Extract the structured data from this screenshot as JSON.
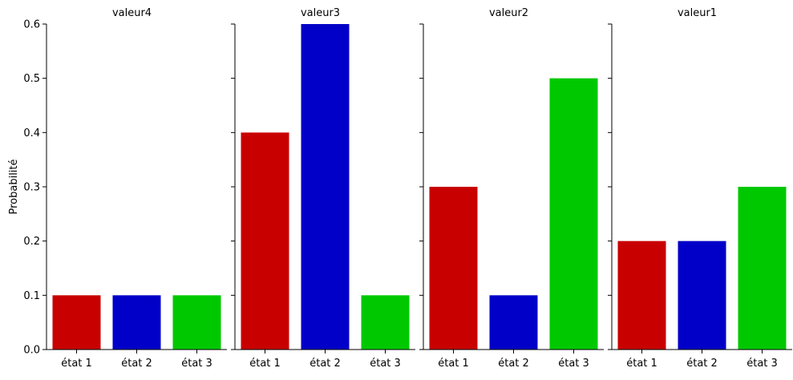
{
  "chart_data": {
    "type": "bar",
    "layout": "facet-grid",
    "ylabel": "Probabilité",
    "ylim": [
      0,
      0.6
    ],
    "yticks": [
      "0.0",
      "0.1",
      "0.2",
      "0.3",
      "0.4",
      "0.5",
      "0.6"
    ],
    "categories": [
      "état 1",
      "état 2",
      "état 3"
    ],
    "category_colors": [
      "#c80000",
      "#0000c8",
      "#00c800"
    ],
    "grid": false,
    "panels": [
      {
        "title": "valeur4",
        "values": [
          0.1,
          0.1,
          0.1
        ]
      },
      {
        "title": "valeur3",
        "values": [
          0.4,
          0.6,
          0.1
        ]
      },
      {
        "title": "valeur2",
        "values": [
          0.3,
          0.1,
          0.5
        ]
      },
      {
        "title": "valeur1",
        "values": [
          0.2,
          0.2,
          0.3
        ]
      }
    ]
  }
}
